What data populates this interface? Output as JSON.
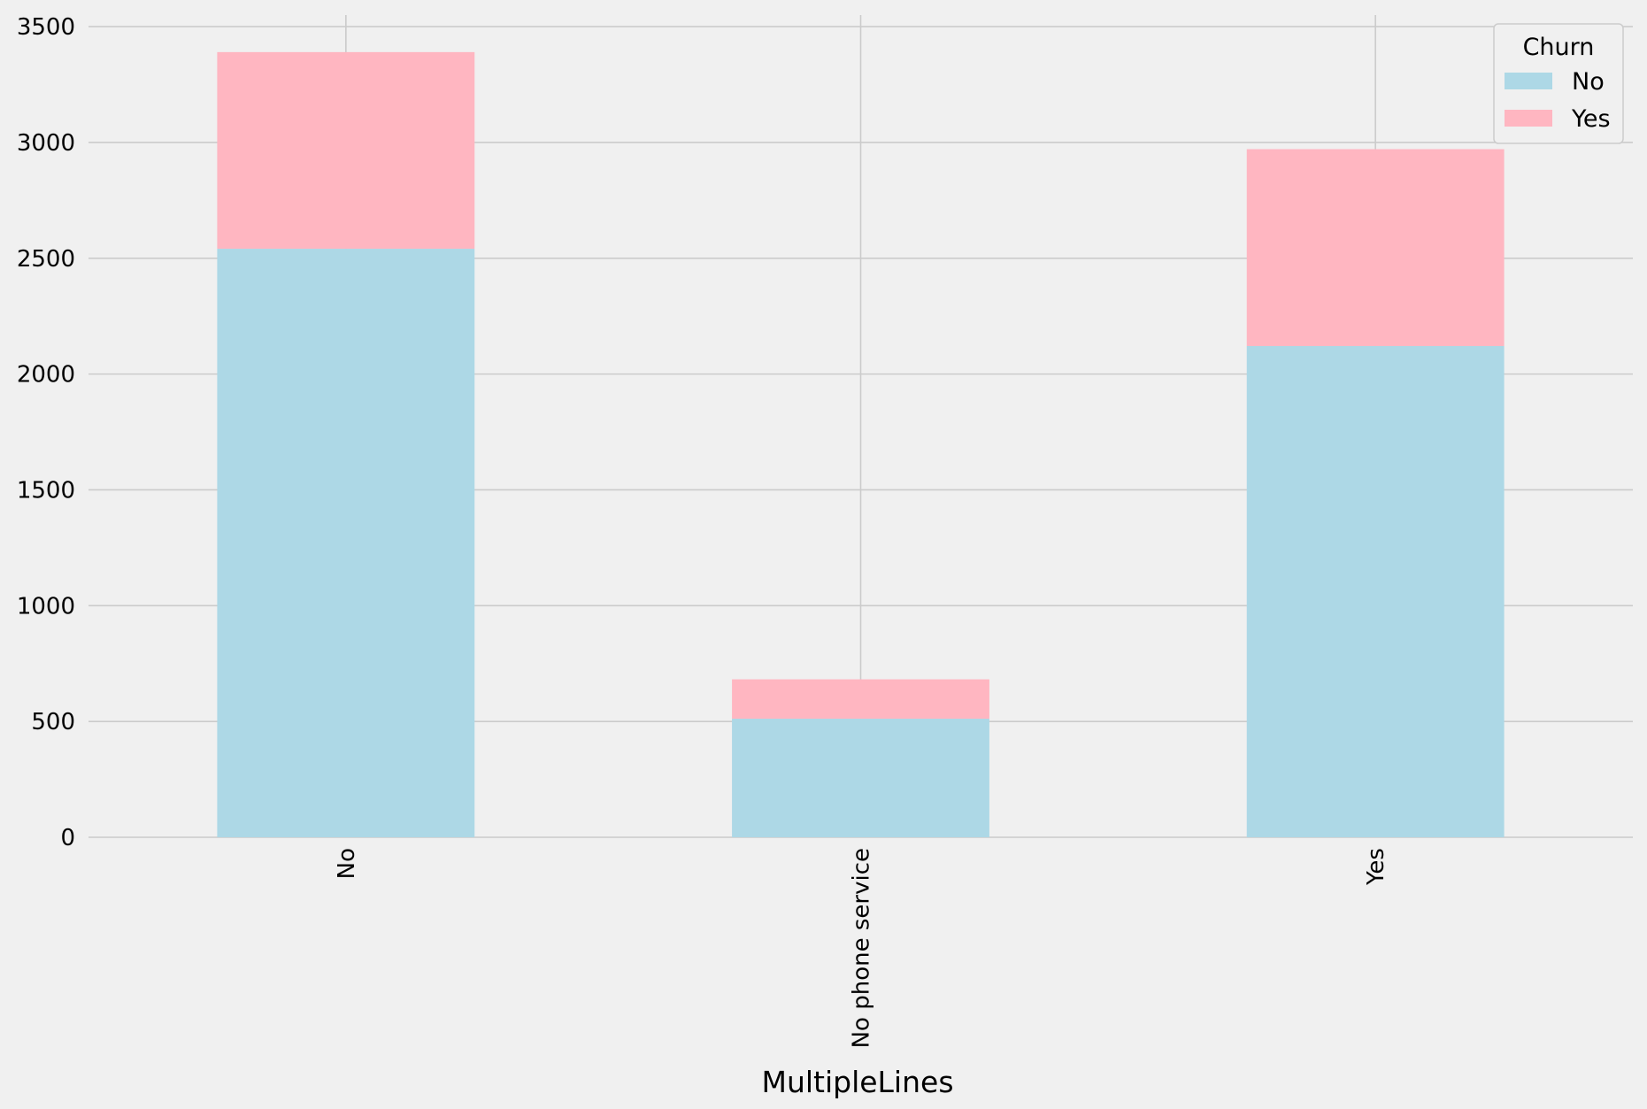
{
  "chart_data": {
    "type": "bar",
    "stacked": true,
    "categories": [
      "No",
      "No phone service",
      "Yes"
    ],
    "series": [
      {
        "name": "No",
        "values": [
          2541,
          512,
          2121
        ],
        "color": "#add8e6"
      },
      {
        "name": "Yes",
        "values": [
          849,
          170,
          850
        ],
        "color": "#ffb6c1"
      }
    ],
    "xlabel": "MultipleLines",
    "ylabel": "",
    "ylim": [
      0,
      3550
    ],
    "yticks": [
      0,
      500,
      1000,
      1500,
      2000,
      2500,
      3000,
      3500
    ],
    "tick_rotation": "vertical",
    "grid": true,
    "legend": {
      "title": "Churn",
      "placement": "top-right"
    }
  }
}
